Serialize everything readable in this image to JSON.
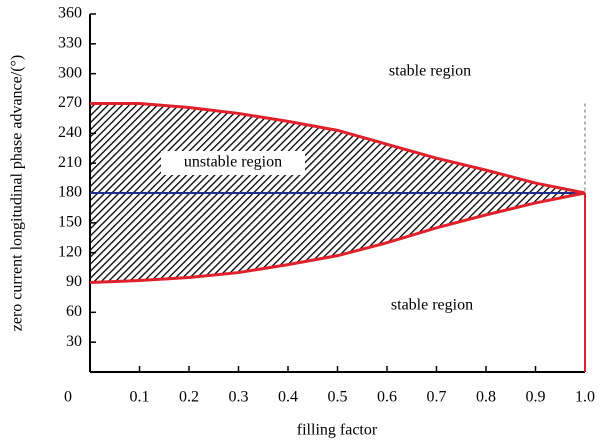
{
  "chart_data": {
    "type": "line",
    "x_label": "filling factor",
    "y_label": "zero current longitudinal phase advance/(°)",
    "x": [
      0,
      0.1,
      0.2,
      0.3,
      0.4,
      0.5,
      0.6,
      0.7,
      0.8,
      0.9,
      1.0
    ],
    "series": [
      {
        "color": "#e0202a",
        "values": [
          270,
          270,
          266,
          260,
          252,
          243,
          229,
          215,
          203,
          190,
          180
        ]
      },
      {
        "color": "#e0202a",
        "values": [
          90,
          92,
          95,
          100,
          108,
          117,
          130,
          145,
          158,
          170,
          180
        ]
      }
    ],
    "hline": {
      "value": 180,
      "color": "#1f2f8f"
    },
    "vline": {
      "x": 1.0,
      "color": "#e0202a"
    },
    "hatch": true,
    "annotations": [
      "stable region",
      "unstable region",
      "stable region"
    ],
    "xlim": [
      0,
      1.0
    ],
    "xticks": [
      0,
      0.1,
      0.2,
      0.3,
      0.4,
      0.5,
      0.6,
      0.7,
      0.8,
      0.9,
      {
        "value": 1.0,
        "label": "1.0"
      }
    ],
    "ylim": [
      0,
      360
    ],
    "yticks": [
      30,
      60,
      90,
      120,
      150,
      180,
      210,
      240,
      270,
      300,
      330,
      360
    ]
  }
}
